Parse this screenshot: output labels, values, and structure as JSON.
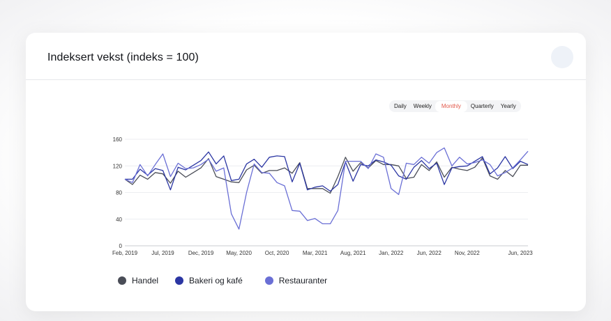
{
  "card": {
    "title": "Indeksert vekst (indeks = 100)"
  },
  "tabs": [
    {
      "label": "Daily",
      "active": false
    },
    {
      "label": "Weekly",
      "active": false
    },
    {
      "label": "Monthly",
      "active": true
    },
    {
      "label": "Quarterly",
      "active": false
    },
    {
      "label": "Yearly",
      "active": false
    }
  ],
  "chart_data": {
    "type": "line",
    "title": "Indeksert vekst (indeks = 100)",
    "ylim": [
      0,
      160
    ],
    "yticks": [
      0,
      40,
      80,
      120,
      160
    ],
    "xticks": [
      "Feb, 2019",
      "Jul, 2019",
      "Dec, 2019",
      "May, 2020",
      "Oct, 2020",
      "Mar, 2021",
      "Aug, 2021",
      "Jan, 2022",
      "Jun, 2022",
      "Nov, 2022",
      "Jun, 2023"
    ],
    "x": [
      "2019-02",
      "2019-03",
      "2019-04",
      "2019-05",
      "2019-06",
      "2019-07",
      "2019-08",
      "2019-09",
      "2019-10",
      "2019-11",
      "2019-12",
      "2020-01",
      "2020-02",
      "2020-03",
      "2020-04",
      "2020-05",
      "2020-06",
      "2020-07",
      "2020-08",
      "2020-09",
      "2020-10",
      "2020-11",
      "2020-12",
      "2021-01",
      "2021-02",
      "2021-03",
      "2021-04",
      "2021-05",
      "2021-06",
      "2021-07",
      "2021-08",
      "2021-09",
      "2021-10",
      "2021-11",
      "2021-12",
      "2022-01",
      "2022-02",
      "2022-03",
      "2022-04",
      "2022-05",
      "2022-06",
      "2022-07",
      "2022-08",
      "2022-09",
      "2022-10",
      "2022-11",
      "2022-12",
      "2023-01",
      "2023-02",
      "2023-03",
      "2023-04",
      "2023-05",
      "2023-06",
      "2023-07"
    ],
    "grid": true,
    "legend_position": "bottom-left",
    "series": [
      {
        "name": "Handel",
        "color": "#4a4d57",
        "values": [
          100,
          92,
          106,
          100,
          110,
          108,
          94,
          112,
          103,
          110,
          117,
          131,
          104,
          100,
          96,
          95,
          114,
          121,
          109,
          113,
          113,
          117,
          109,
          125,
          86,
          86,
          86,
          79,
          104,
          133,
          112,
          125,
          117,
          128,
          122,
          122,
          120,
          101,
          103,
          122,
          113,
          126,
          103,
          118,
          115,
          113,
          118,
          132,
          105,
          100,
          113,
          104,
          121,
          121
        ]
      },
      {
        "name": "Bakeri og kafé",
        "color": "#2b36a3",
        "values": [
          100,
          100,
          115,
          106,
          116,
          113,
          84,
          118,
          114,
          121,
          128,
          141,
          123,
          135,
          98,
          100,
          123,
          130,
          118,
          133,
          135,
          134,
          96,
          124,
          84,
          88,
          90,
          82,
          92,
          126,
          97,
          122,
          120,
          129,
          126,
          121,
          105,
          100,
          118,
          128,
          116,
          124,
          92,
          117,
          119,
          120,
          127,
          134,
          108,
          117,
          134,
          116,
          127,
          122
        ]
      },
      {
        "name": "Restauranter",
        "color": "#6a6fd5",
        "values": [
          100,
          95,
          122,
          105,
          122,
          138,
          104,
          124,
          116,
          117,
          122,
          130,
          112,
          117,
          48,
          25,
          80,
          123,
          110,
          109,
          95,
          90,
          53,
          52,
          38,
          41,
          33,
          33,
          53,
          127,
          127,
          127,
          116,
          138,
          133,
          86,
          77,
          124,
          122,
          133,
          124,
          140,
          147,
          120,
          133,
          123,
          125,
          129,
          122,
          105,
          110,
          117,
          129,
          142
        ]
      }
    ]
  }
}
